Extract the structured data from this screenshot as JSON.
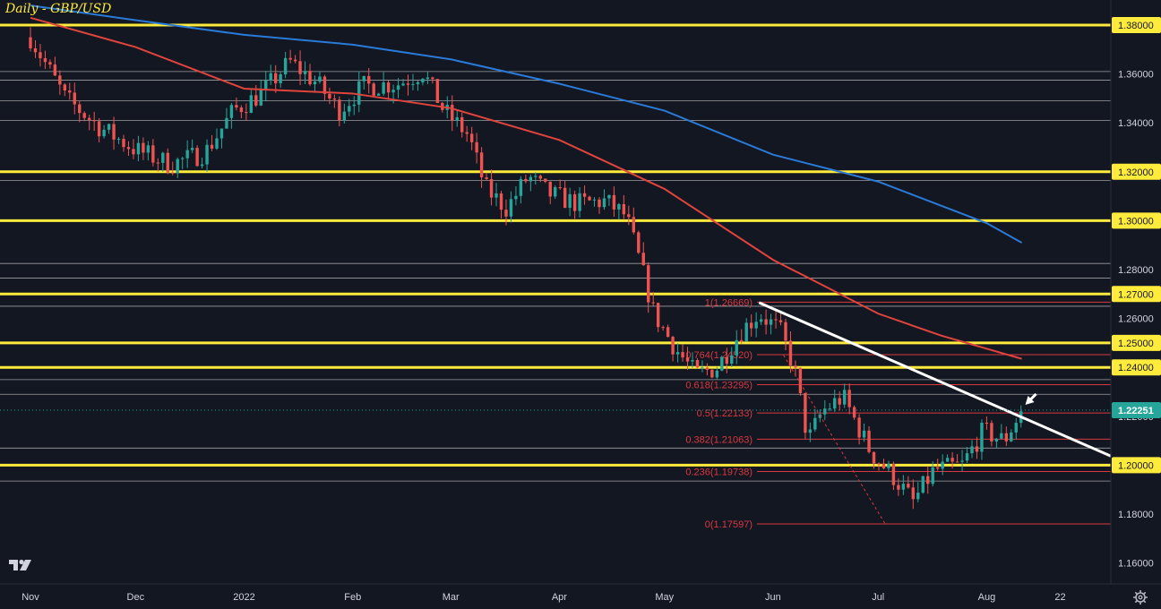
{
  "chart_data": {
    "type": "candlestick",
    "title": "Daily - GBP/USD",
    "y_range": [
      1.15,
      1.39
    ],
    "y_ticks": [
      "1.38000",
      "1.36000",
      "1.34000",
      "1.32000",
      "1.30000",
      "1.28000",
      "1.27000",
      "1.26000",
      "1.25000",
      "1.24000",
      "1.22000",
      "1.20000",
      "1.18000",
      "1.16000"
    ],
    "x_ticks": [
      {
        "label": "Nov",
        "day": 0
      },
      {
        "label": "Dec",
        "day": 30
      },
      {
        "label": "2022",
        "day": 61
      },
      {
        "label": "Feb",
        "day": 92
      },
      {
        "label": "Mar",
        "day": 120
      },
      {
        "label": "Apr",
        "day": 151
      },
      {
        "label": "May",
        "day": 181
      },
      {
        "label": "Jun",
        "day": 212
      },
      {
        "label": "Jul",
        "day": 242
      },
      {
        "label": "Aug",
        "day": 273
      },
      {
        "label": "22",
        "day": 294
      }
    ],
    "current_price": "1.22251",
    "horizontal_levels": [
      1.38,
      1.32,
      1.3,
      1.27,
      1.25,
      1.24,
      1.2
    ],
    "thin_levels": [
      1.361,
      1.3575,
      1.349,
      1.341,
      1.3165,
      1.2825,
      1.2765,
      1.265,
      1.235,
      1.229,
      1.207,
      1.1935
    ],
    "fibonacci": [
      {
        "label": "1(1.26669)",
        "value": 1.26669
      },
      {
        "label": "0.764(1.24520)",
        "value": 1.2452
      },
      {
        "label": "0.618(1.23295)",
        "value": 1.23295
      },
      {
        "label": "0.5(1.22133)",
        "value": 1.22133
      },
      {
        "label": "0.382(1.21063)",
        "value": 1.21063
      },
      {
        "label": "0.236(1.19738)",
        "value": 1.19738
      },
      {
        "label": "0(1.17597)",
        "value": 1.17597
      }
    ],
    "trendline": [
      {
        "day": 208,
        "price": 1.2665
      },
      {
        "day": 292,
        "price": 1.214
      }
    ],
    "dashed_line": [
      {
        "day": 215,
        "price": 1.245
      },
      {
        "day": 244,
        "price": 1.176
      }
    ],
    "sma_blue": [
      {
        "day": 0,
        "price": 1.388
      },
      {
        "day": 30,
        "price": 1.382
      },
      {
        "day": 61,
        "price": 1.376
      },
      {
        "day": 92,
        "price": 1.372
      },
      {
        "day": 120,
        "price": 1.366
      },
      {
        "day": 151,
        "price": 1.356
      },
      {
        "day": 181,
        "price": 1.345
      },
      {
        "day": 212,
        "price": 1.327
      },
      {
        "day": 242,
        "price": 1.316
      },
      {
        "day": 273,
        "price": 1.299
      },
      {
        "day": 283,
        "price": 1.291
      }
    ],
    "sma_red": [
      {
        "day": 0,
        "price": 1.383
      },
      {
        "day": 30,
        "price": 1.371
      },
      {
        "day": 61,
        "price": 1.354
      },
      {
        "day": 92,
        "price": 1.352
      },
      {
        "day": 120,
        "price": 1.346
      },
      {
        "day": 151,
        "price": 1.333
      },
      {
        "day": 181,
        "price": 1.313
      },
      {
        "day": 212,
        "price": 1.284
      },
      {
        "day": 242,
        "price": 1.262
      },
      {
        "day": 260,
        "price": 1.253
      },
      {
        "day": 283,
        "price": 1.2435
      }
    ],
    "price_path": [
      {
        "day": 0,
        "price": 1.375
      },
      {
        "day": 10,
        "price": 1.35
      },
      {
        "day": 20,
        "price": 1.338
      },
      {
        "day": 30,
        "price": 1.329
      },
      {
        "day": 40,
        "price": 1.323
      },
      {
        "day": 50,
        "price": 1.328
      },
      {
        "day": 58,
        "price": 1.345
      },
      {
        "day": 66,
        "price": 1.352
      },
      {
        "day": 74,
        "price": 1.365
      },
      {
        "day": 82,
        "price": 1.356
      },
      {
        "day": 88,
        "price": 1.345
      },
      {
        "day": 95,
        "price": 1.355
      },
      {
        "day": 105,
        "price": 1.356
      },
      {
        "day": 112,
        "price": 1.361
      },
      {
        "day": 118,
        "price": 1.345
      },
      {
        "day": 125,
        "price": 1.335
      },
      {
        "day": 130,
        "price": 1.313
      },
      {
        "day": 136,
        "price": 1.305
      },
      {
        "day": 142,
        "price": 1.318
      },
      {
        "day": 148,
        "price": 1.311
      },
      {
        "day": 156,
        "price": 1.307
      },
      {
        "day": 164,
        "price": 1.308
      },
      {
        "day": 170,
        "price": 1.302
      },
      {
        "day": 174,
        "price": 1.283
      },
      {
        "day": 178,
        "price": 1.262
      },
      {
        "day": 184,
        "price": 1.248
      },
      {
        "day": 190,
        "price": 1.237
      },
      {
        "day": 196,
        "price": 1.24
      },
      {
        "day": 203,
        "price": 1.255
      },
      {
        "day": 208,
        "price": 1.262
      },
      {
        "day": 214,
        "price": 1.255
      },
      {
        "day": 218,
        "price": 1.24
      },
      {
        "day": 222,
        "price": 1.21
      },
      {
        "day": 226,
        "price": 1.222
      },
      {
        "day": 232,
        "price": 1.228
      },
      {
        "day": 240,
        "price": 1.205
      },
      {
        "day": 246,
        "price": 1.196
      },
      {
        "day": 252,
        "price": 1.185
      },
      {
        "day": 258,
        "price": 1.198
      },
      {
        "day": 266,
        "price": 1.2
      },
      {
        "day": 272,
        "price": 1.214
      },
      {
        "day": 278,
        "price": 1.21
      },
      {
        "day": 283,
        "price": 1.2225
      }
    ]
  },
  "ui": {
    "logo_icon": "tradingview-logo-icon",
    "settings_icon": "gear-icon",
    "arrow_icon": "arrow-icon",
    "colors": {
      "background": "#131722",
      "yellow": "#ffeb3b",
      "bull": "#26a69a",
      "bear": "#ef5350",
      "sma_blue": "#2a7ad8",
      "sma_red": "#e0443d",
      "fib": "#d9383f",
      "grid_text": "#d1d4dc"
    }
  }
}
